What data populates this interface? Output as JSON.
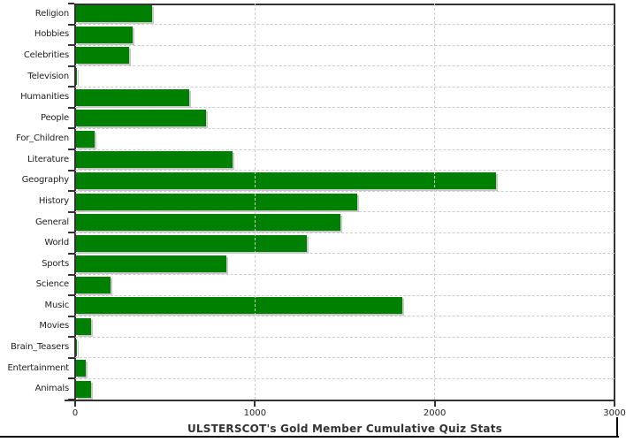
{
  "chart_data": {
    "type": "bar",
    "orientation": "horizontal",
    "title": "ULSTERSCOT's Gold Member Cumulative Quiz Stats",
    "categories": [
      "Religion",
      "Hobbies",
      "Celebrities",
      "Television",
      "Humanities",
      "People",
      "For_Children",
      "Literature",
      "Geography",
      "History",
      "General",
      "World",
      "Sports",
      "Science",
      "Music",
      "Movies",
      "Brain_Teasers",
      "Entertainment",
      "Animals"
    ],
    "values": [
      425,
      315,
      295,
      5,
      630,
      725,
      105,
      870,
      2335,
      1565,
      1470,
      1285,
      835,
      190,
      1815,
      85,
      5,
      55,
      85
    ],
    "xlabel": "",
    "ylabel": "",
    "xlim": [
      0,
      3000
    ],
    "x_ticks": [
      0,
      1000,
      2000,
      3000
    ],
    "grid": true,
    "legend": "none",
    "bar_color": "#008000",
    "bar_shadow_color": "#c8c8c8",
    "grid_color": "#cccccc",
    "frame_color": "#333333"
  }
}
